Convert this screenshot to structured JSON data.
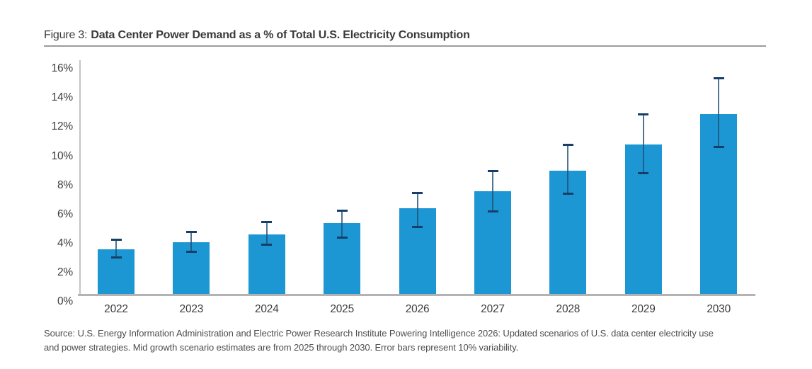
{
  "figure": {
    "label_prefix": "Figure 3:",
    "title": "Data Center Power Demand as a % of Total U.S. Electricity Consumption"
  },
  "source_note": {
    "line1": "Source: U.S. Energy Information Administration and Electric Power Research Institute Powering Intelligence 2026: Updated scenarios of U.S. data center electricity use",
    "line2": "and power strategies. Mid growth scenario estimates are from 2025 through 2030. Error bars represent 10% variability."
  },
  "colors": {
    "bar": "#1c97d4",
    "error_bar_line": "rgba(31,78,116,0.78)",
    "error_bar_cap": "#163f67",
    "x_baseline": "#b3b3b3",
    "y_spine": "#c4c4c4",
    "title_rule": "#9c9c9c",
    "title_text": "#3a3a3a",
    "axis_text": "#3d3d3d",
    "source_text": "#4d4d4d"
  },
  "chart_data": {
    "type": "bar",
    "title": "Data Center Power Demand as a % of Total U.S. Electricity Consumption",
    "categories": [
      "2022",
      "2023",
      "2024",
      "2025",
      "2026",
      "2027",
      "2028",
      "2029",
      "2030"
    ],
    "values": [
      3.6,
      4.1,
      4.6,
      5.4,
      6.4,
      7.6,
      9.0,
      10.8,
      12.9
    ],
    "error_low": [
      3.0,
      3.4,
      3.9,
      4.4,
      5.1,
      6.2,
      7.4,
      8.8,
      10.6
    ],
    "error_high": [
      4.3,
      4.8,
      5.5,
      6.3,
      7.5,
      9.0,
      10.8,
      12.9,
      15.4
    ],
    "y_ticks": [
      "0%",
      "2%",
      "4%",
      "6%",
      "8%",
      "10%",
      "12%",
      "14%",
      "16%"
    ],
    "ylim": [
      0,
      16
    ],
    "ytick_step": 2,
    "xlabel": "",
    "ylabel": "",
    "grid": false,
    "legend": false,
    "error_note": "Error bars represent 10% variability"
  }
}
